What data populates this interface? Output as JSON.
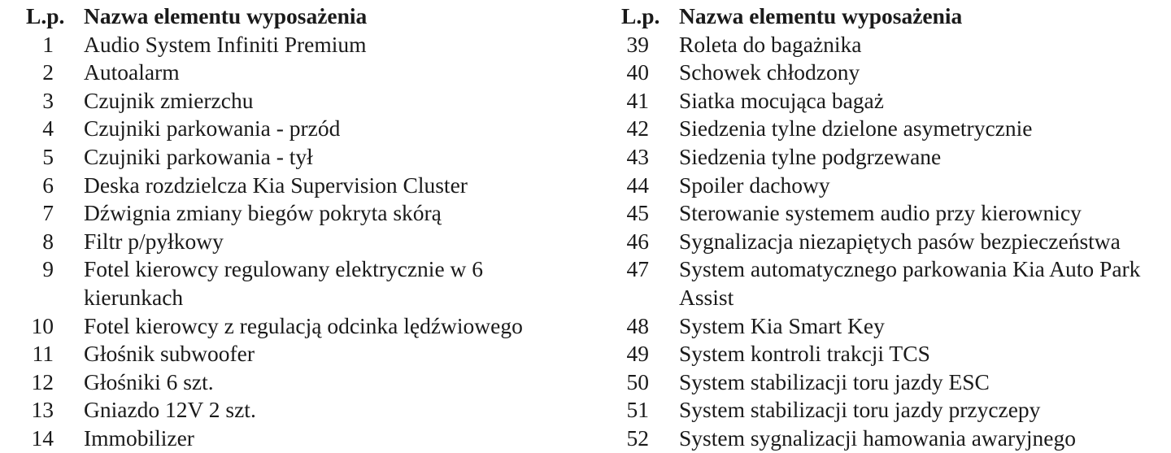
{
  "header": {
    "number": "L.p.",
    "name": "Nazwa elementu wyposażenia"
  },
  "left_items": [
    {
      "n": "1",
      "name": "Audio System Infiniti Premium"
    },
    {
      "n": "2",
      "name": "Autoalarm"
    },
    {
      "n": "3",
      "name": "Czujnik zmierzchu"
    },
    {
      "n": "4",
      "name": "Czujniki parkowania - przód"
    },
    {
      "n": "5",
      "name": "Czujniki parkowania - tył"
    },
    {
      "n": "6",
      "name": "Deska rozdzielcza Kia Supervision Cluster"
    },
    {
      "n": "7",
      "name": "Dźwignia zmiany biegów pokryta skórą"
    },
    {
      "n": "8",
      "name": "Filtr p/pyłkowy"
    },
    {
      "n": "9",
      "name": "Fotel kierowcy regulowany elektrycznie w 6 kierunkach"
    },
    {
      "n": "10",
      "name": "Fotel kierowcy z regulacją odcinka lędźwiowego"
    },
    {
      "n": "11",
      "name": "Głośnik subwoofer"
    },
    {
      "n": "12",
      "name": "Głośniki 6 szt."
    },
    {
      "n": "13",
      "name": "Gniazdo 12V 2 szt."
    },
    {
      "n": "14",
      "name": "Immobilizer"
    }
  ],
  "right_items": [
    {
      "n": "39",
      "name": "Roleta do bagażnika"
    },
    {
      "n": "40",
      "name": "Schowek chłodzony"
    },
    {
      "n": "41",
      "name": "Siatka mocująca bagaż"
    },
    {
      "n": "42",
      "name": "Siedzenia tylne dzielone asymetrycznie"
    },
    {
      "n": "43",
      "name": "Siedzenia tylne podgrzewane"
    },
    {
      "n": "44",
      "name": "Spoiler dachowy"
    },
    {
      "n": "45",
      "name": "Sterowanie systemem audio przy kierownicy"
    },
    {
      "n": "46",
      "name": "Sygnalizacja niezapiętych pasów bezpieczeństwa"
    },
    {
      "n": "47",
      "name": "System automatycznego parkowania Kia Auto Park Assist"
    },
    {
      "n": "48",
      "name": "System Kia Smart Key"
    },
    {
      "n": "49",
      "name": "System kontroli trakcji TCS"
    },
    {
      "n": "50",
      "name": "System stabilizacji toru jazdy ESC"
    },
    {
      "n": "51",
      "name": "System stabilizacji toru jazdy przyczepy"
    },
    {
      "n": "52",
      "name": "System sygnalizacji hamowania awaryjnego"
    }
  ]
}
